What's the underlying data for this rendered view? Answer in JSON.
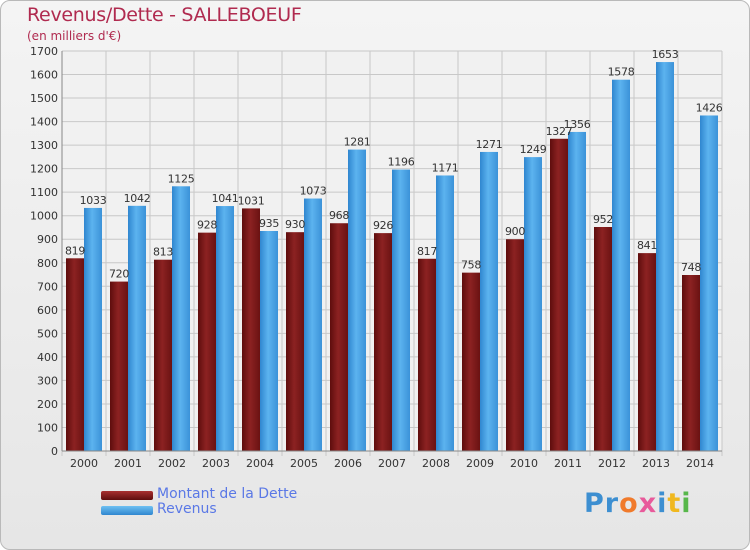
{
  "title": "Revenus/Dette - SALLEBOEUF",
  "subtitle": "(en milliers d'€)",
  "legend": [
    {
      "label": "Montant de la Dette",
      "color": "#8a1a1a"
    },
    {
      "label": "Revenus",
      "color": "#4ea6e8"
    }
  ],
  "logo": {
    "letters": [
      "P",
      "r",
      "o",
      "x",
      "i",
      "t",
      "i"
    ],
    "colors": [
      "#3d8fd1",
      "#3d8fd1",
      "#f07a2b",
      "#e85a9b",
      "#3d8fd1",
      "#f0b81f",
      "#57b74a"
    ]
  },
  "chart_data": {
    "type": "bar",
    "title": "Revenus/Dette - SALLEBOEUF",
    "ylabel": "(en milliers d'€)",
    "xlabel": "",
    "ylim": [
      0,
      1700
    ],
    "yticks": [
      0,
      100,
      200,
      300,
      400,
      500,
      600,
      700,
      800,
      900,
      1000,
      1100,
      1200,
      1300,
      1400,
      1500,
      1600,
      1700
    ],
    "grid": true,
    "legend_position": "bottom-left",
    "categories": [
      "2000",
      "2001",
      "2002",
      "2003",
      "2004",
      "2005",
      "2006",
      "2007",
      "2008",
      "2009",
      "2010",
      "2011",
      "2012",
      "2013",
      "2014"
    ],
    "series": [
      {
        "name": "Montant de la Dette",
        "color": "#8a1a1a",
        "values": [
          819,
          720,
          813,
          928,
          1031,
          930,
          968,
          926,
          817,
          758,
          900,
          1327,
          952,
          841,
          748
        ]
      },
      {
        "name": "Revenus",
        "color": "#4ea6e8",
        "values": [
          1033,
          1042,
          1125,
          1041,
          935,
          1073,
          1281,
          1196,
          1171,
          1271,
          1249,
          1356,
          1578,
          1653,
          1426
        ]
      }
    ]
  }
}
